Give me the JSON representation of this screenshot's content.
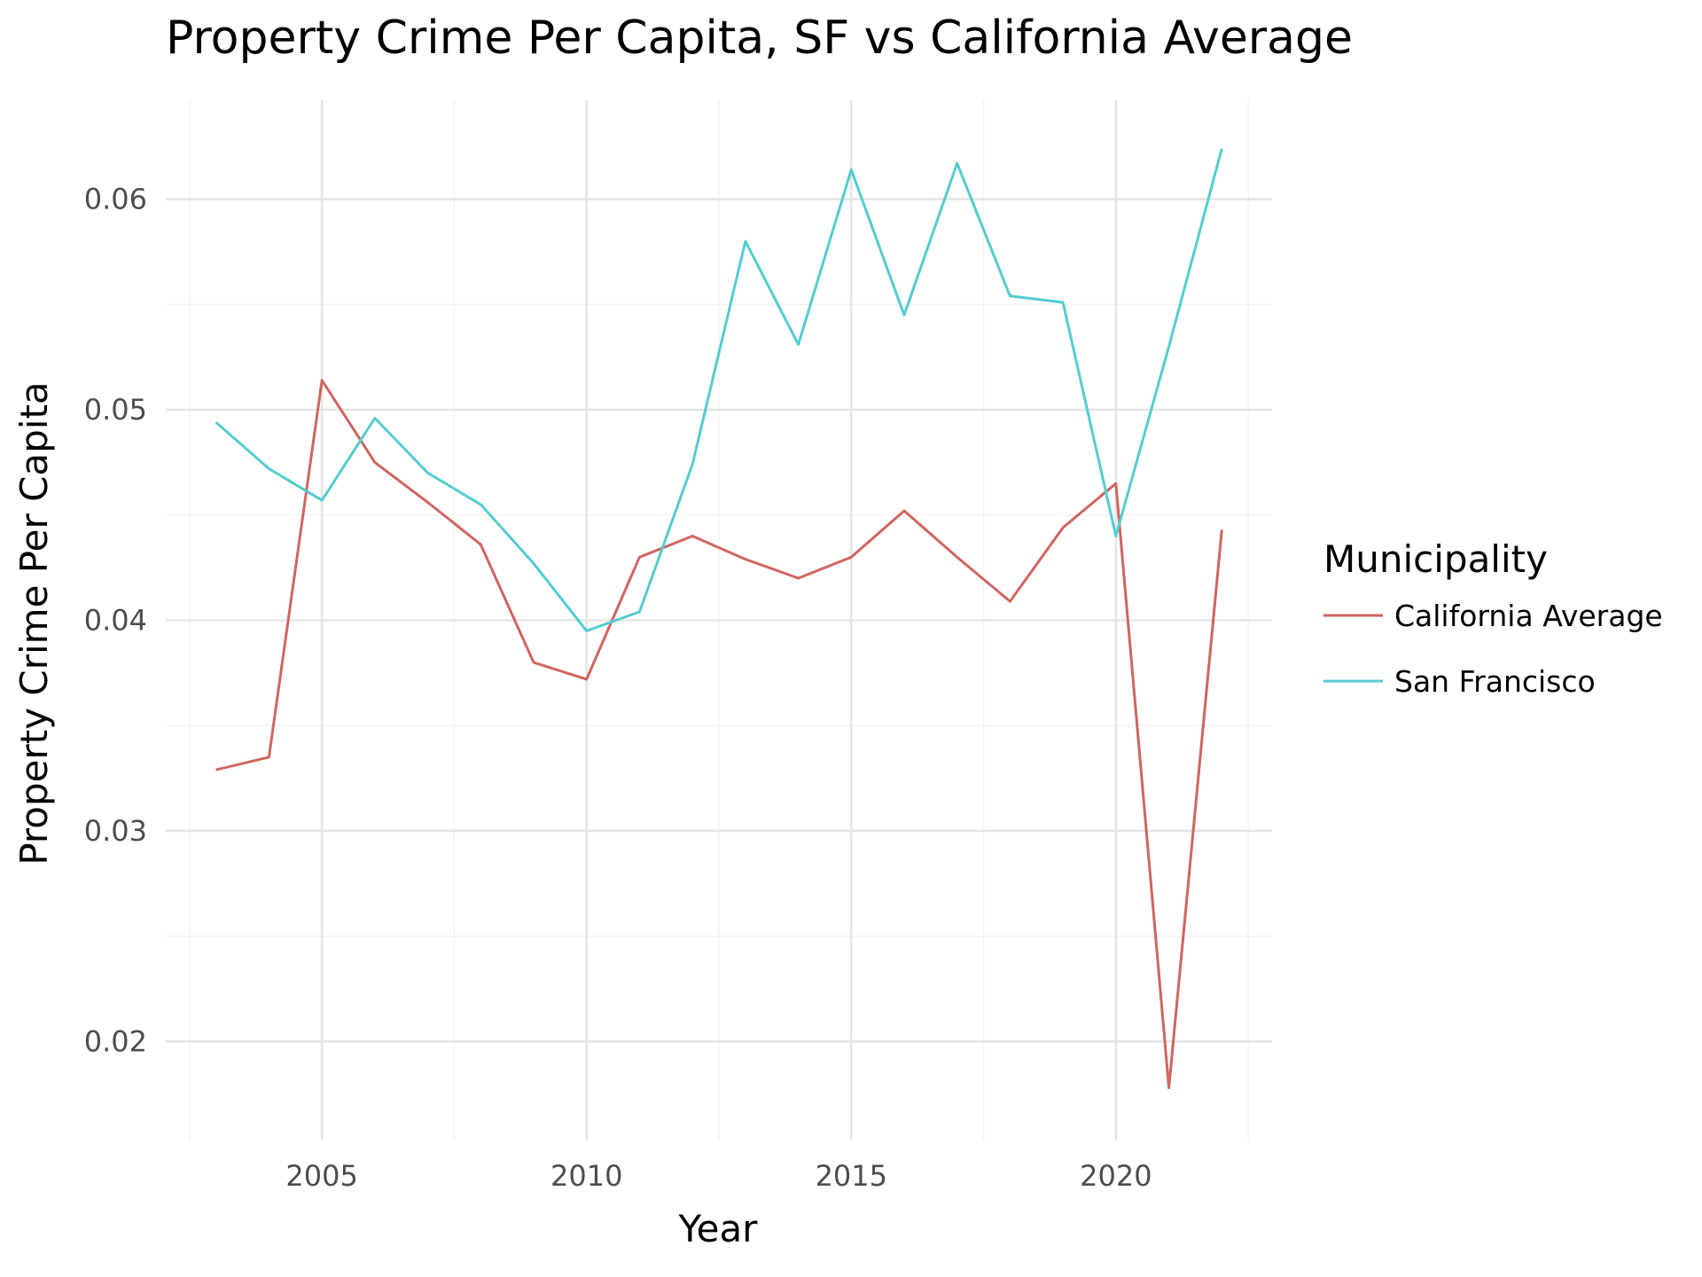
{
  "chart_data": {
    "type": "line",
    "title": "Property Crime Per Capita, SF vs California Average",
    "xlabel": "Year",
    "ylabel": "Property Crime Per Capita",
    "x": [
      2003,
      2004,
      2005,
      2006,
      2007,
      2008,
      2009,
      2010,
      2011,
      2012,
      2013,
      2014,
      2015,
      2016,
      2017,
      2018,
      2019,
      2020,
      2021,
      2022
    ],
    "xlim": [
      2002.05,
      2022.95
    ],
    "ylim": [
      0.0153,
      0.0647
    ],
    "x_ticks": [
      2005,
      2010,
      2015,
      2020
    ],
    "x_tick_labels": [
      "2005",
      "2010",
      "2015",
      "2020"
    ],
    "y_ticks": [
      0.02,
      0.03,
      0.04,
      0.05,
      0.06
    ],
    "y_tick_labels": [
      "0.02",
      "0.03",
      "0.04",
      "0.05",
      "0.06"
    ],
    "grid": true,
    "legend": {
      "title": "Municipality",
      "position": "right"
    },
    "series": [
      {
        "name": "California Average",
        "color": "#d0645f",
        "values": [
          0.0329,
          0.0335,
          0.0514,
          0.0475,
          0.0456,
          0.0436,
          0.038,
          0.0372,
          0.043,
          0.044,
          0.0429,
          0.042,
          0.043,
          0.0452,
          0.043,
          0.0409,
          0.0444,
          0.0465,
          0.0178,
          0.0443
        ]
      },
      {
        "name": "San Francisco",
        "color": "#52ccd1",
        "values": [
          0.0494,
          0.0472,
          0.0457,
          0.0496,
          0.047,
          0.0455,
          0.0427,
          0.0395,
          0.0404,
          0.0474,
          0.058,
          0.0531,
          0.0614,
          0.0545,
          0.0617,
          0.0554,
          0.0551,
          0.044,
          0.053,
          0.0624
        ]
      }
    ]
  }
}
